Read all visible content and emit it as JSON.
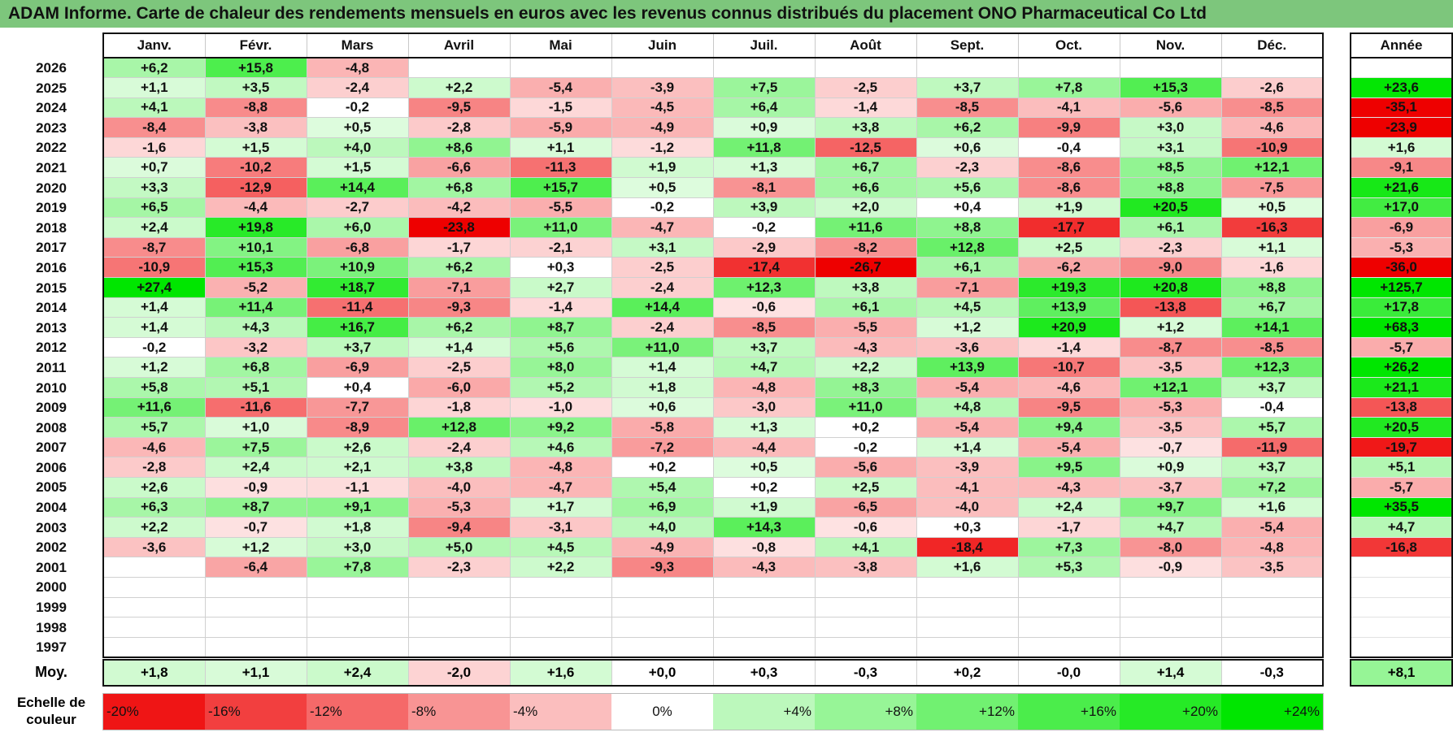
{
  "title": "ADAM Informe. Carte de chaleur des rendements mensuels en euros avec les revenus connus distribués du placement ONO Pharmaceutical Co Ltd",
  "chart_data": {
    "type": "heatmap",
    "title": "ADAM Informe. Carte de chaleur des rendements mensuels en euros avec les revenus connus distribués du placement ONO Pharmaceutical Co Ltd",
    "months": [
      "Janv.",
      "Févr.",
      "Mars",
      "Avril",
      "Mai",
      "Juin",
      "Juil.",
      "Août",
      "Sept.",
      "Oct.",
      "Nov.",
      "Déc."
    ],
    "annual_header": "Année",
    "years": [
      "2026",
      "2025",
      "2024",
      "2023",
      "2022",
      "2021",
      "2020",
      "2019",
      "2018",
      "2017",
      "2016",
      "2015",
      "2014",
      "2013",
      "2012",
      "2011",
      "2010",
      "2009",
      "2008",
      "2007",
      "2006",
      "2005",
      "2004",
      "2003",
      "2002",
      "2001",
      "2000",
      "1999",
      "1998",
      "1997"
    ],
    "values": [
      [
        "+6,2",
        "+15,8",
        "-4,8",
        "",
        "",
        "",
        "",
        "",
        "",
        "",
        "",
        ""
      ],
      [
        "+1,1",
        "+3,5",
        "-2,4",
        "+2,2",
        "-5,4",
        "-3,9",
        "+7,5",
        "-2,5",
        "+3,7",
        "+7,8",
        "+15,3",
        "-2,6"
      ],
      [
        "+4,1",
        "-8,8",
        "-0,2",
        "-9,5",
        "-1,5",
        "-4,5",
        "+6,4",
        "-1,4",
        "-8,5",
        "-4,1",
        "-5,6",
        "-8,5"
      ],
      [
        "-8,4",
        "-3,8",
        "+0,5",
        "-2,8",
        "-5,9",
        "-4,9",
        "+0,9",
        "+3,8",
        "+6,2",
        "-9,9",
        "+3,0",
        "-4,6"
      ],
      [
        "-1,6",
        "+1,5",
        "+4,0",
        "+8,6",
        "+1,1",
        "-1,2",
        "+11,8",
        "-12,5",
        "+0,6",
        "-0,4",
        "+3,1",
        "-10,9"
      ],
      [
        "+0,7",
        "-10,2",
        "+1,5",
        "-6,6",
        "-11,3",
        "+1,9",
        "+1,3",
        "+6,7",
        "-2,3",
        "-8,6",
        "+8,5",
        "+12,1"
      ],
      [
        "+3,3",
        "-12,9",
        "+14,4",
        "+6,8",
        "+15,7",
        "+0,5",
        "-8,1",
        "+6,6",
        "+5,6",
        "-8,6",
        "+8,8",
        "-7,5"
      ],
      [
        "+6,5",
        "-4,4",
        "-2,7",
        "-4,2",
        "-5,5",
        "-0,2",
        "+3,9",
        "+2,0",
        "+0,4",
        "+1,9",
        "+20,5",
        "+0,5"
      ],
      [
        "+2,4",
        "+19,8",
        "+6,0",
        "-23,8",
        "+11,0",
        "-4,7",
        "-0,2",
        "+11,6",
        "+8,8",
        "-17,7",
        "+6,1",
        "-16,3"
      ],
      [
        "-8,7",
        "+10,1",
        "-6,8",
        "-1,7",
        "-2,1",
        "+3,1",
        "-2,9",
        "-8,2",
        "+12,8",
        "+2,5",
        "-2,3",
        "+1,1"
      ],
      [
        "-10,9",
        "+15,3",
        "+10,9",
        "+6,2",
        "+0,3",
        "-2,5",
        "-17,4",
        "-26,7",
        "+6,1",
        "-6,2",
        "-9,0",
        "-1,6"
      ],
      [
        "+27,4",
        "-5,2",
        "+18,7",
        "-7,1",
        "+2,7",
        "-2,4",
        "+12,3",
        "+3,8",
        "-7,1",
        "+19,3",
        "+20,8",
        "+8,8"
      ],
      [
        "+1,4",
        "+11,4",
        "-11,4",
        "-9,3",
        "-1,4",
        "+14,4",
        "-0,6",
        "+6,1",
        "+4,5",
        "+13,9",
        "-13,8",
        "+6,7"
      ],
      [
        "+1,4",
        "+4,3",
        "+16,7",
        "+6,2",
        "+8,7",
        "-2,4",
        "-8,5",
        "-5,5",
        "+1,2",
        "+20,9",
        "+1,2",
        "+14,1"
      ],
      [
        "-0,2",
        "-3,2",
        "+3,7",
        "+1,4",
        "+5,6",
        "+11,0",
        "+3,7",
        "-4,3",
        "-3,6",
        "-1,4",
        "-8,7",
        "-8,5"
      ],
      [
        "+1,2",
        "+6,8",
        "-6,9",
        "-2,5",
        "+8,0",
        "+1,4",
        "+4,7",
        "+2,2",
        "+13,9",
        "-10,7",
        "-3,5",
        "+12,3"
      ],
      [
        "+5,8",
        "+5,1",
        "+0,4",
        "-6,0",
        "+5,2",
        "+1,8",
        "-4,8",
        "+8,3",
        "-5,4",
        "-4,6",
        "+12,1",
        "+3,7"
      ],
      [
        "+11,6",
        "-11,6",
        "-7,7",
        "-1,8",
        "-1,0",
        "+0,6",
        "-3,0",
        "+11,0",
        "+4,8",
        "-9,5",
        "-5,3",
        "-0,4"
      ],
      [
        "+5,7",
        "+1,0",
        "-8,9",
        "+12,8",
        "+9,2",
        "-5,8",
        "+1,3",
        "+0,2",
        "-5,4",
        "+9,4",
        "-3,5",
        "+5,7"
      ],
      [
        "-4,6",
        "+7,5",
        "+2,6",
        "-2,4",
        "+4,6",
        "-7,2",
        "-4,4",
        "-0,2",
        "+1,4",
        "-5,4",
        "-0,7",
        "-11,9"
      ],
      [
        "-2,8",
        "+2,4",
        "+2,1",
        "+3,8",
        "-4,8",
        "+0,2",
        "+0,5",
        "-5,6",
        "-3,9",
        "+9,5",
        "+0,9",
        "+3,7"
      ],
      [
        "+2,6",
        "-0,9",
        "-1,1",
        "-4,0",
        "-4,7",
        "+5,4",
        "+0,2",
        "+2,5",
        "-4,1",
        "-4,3",
        "-3,7",
        "+7,2"
      ],
      [
        "+6,3",
        "+8,7",
        "+9,1",
        "-5,3",
        "+1,7",
        "+6,9",
        "+1,9",
        "-6,5",
        "-4,0",
        "+2,4",
        "+9,7",
        "+1,6"
      ],
      [
        "+2,2",
        "-0,7",
        "+1,8",
        "-9,4",
        "-3,1",
        "+4,0",
        "+14,3",
        "-0,6",
        "+0,3",
        "-1,7",
        "+4,7",
        "-5,4"
      ],
      [
        "-3,6",
        "+1,2",
        "+3,0",
        "+5,0",
        "+4,5",
        "-4,9",
        "-0,8",
        "+4,1",
        "-18,4",
        "+7,3",
        "-8,0",
        "-4,8"
      ],
      [
        "",
        "-6,4",
        "+7,8",
        "-2,3",
        "+2,2",
        "-9,3",
        "-4,3",
        "-3,8",
        "+1,6",
        "+5,3",
        "-0,9",
        "-3,5"
      ],
      [
        "",
        "",
        "",
        "",
        "",
        "",
        "",
        "",
        "",
        "",
        "",
        ""
      ],
      [
        "",
        "",
        "",
        "",
        "",
        "",
        "",
        "",
        "",
        "",
        "",
        ""
      ],
      [
        "",
        "",
        "",
        "",
        "",
        "",
        "",
        "",
        "",
        "",
        "",
        ""
      ],
      [
        "",
        "",
        "",
        "",
        "",
        "",
        "",
        "",
        "",
        "",
        "",
        ""
      ]
    ],
    "annual": [
      "",
      "+23,6",
      "-35,1",
      "-23,9",
      "+1,6",
      "-9,1",
      "+21,6",
      "+17,0",
      "-6,9",
      "-5,3",
      "-36,0",
      "+125,7",
      "+17,8",
      "+68,3",
      "-5,7",
      "+26,2",
      "+21,1",
      "-13,8",
      "+20,5",
      "-19,7",
      "+5,1",
      "-5,7",
      "+35,5",
      "+4,7",
      "-16,8",
      "",
      "",
      "",
      "",
      ""
    ],
    "average_label": "Moy.",
    "averages": [
      "+1,8",
      "+1,1",
      "+2,4",
      "-2,0",
      "+1,6",
      "+0,0",
      "+0,3",
      "-0,3",
      "+0,2",
      "-0,0",
      "+1,4",
      "-0,3"
    ],
    "annual_average": "+8,1",
    "scale_label": "Echelle de couleur",
    "scale": [
      "-20%",
      "-16%",
      "-12%",
      "-8%",
      "-4%",
      "0%",
      "+4%",
      "+8%",
      "+12%",
      "+16%",
      "+20%",
      "+24%"
    ],
    "scale_values": [
      -20,
      -16,
      -12,
      -8,
      -4,
      0,
      4,
      8,
      12,
      16,
      20,
      24
    ]
  }
}
